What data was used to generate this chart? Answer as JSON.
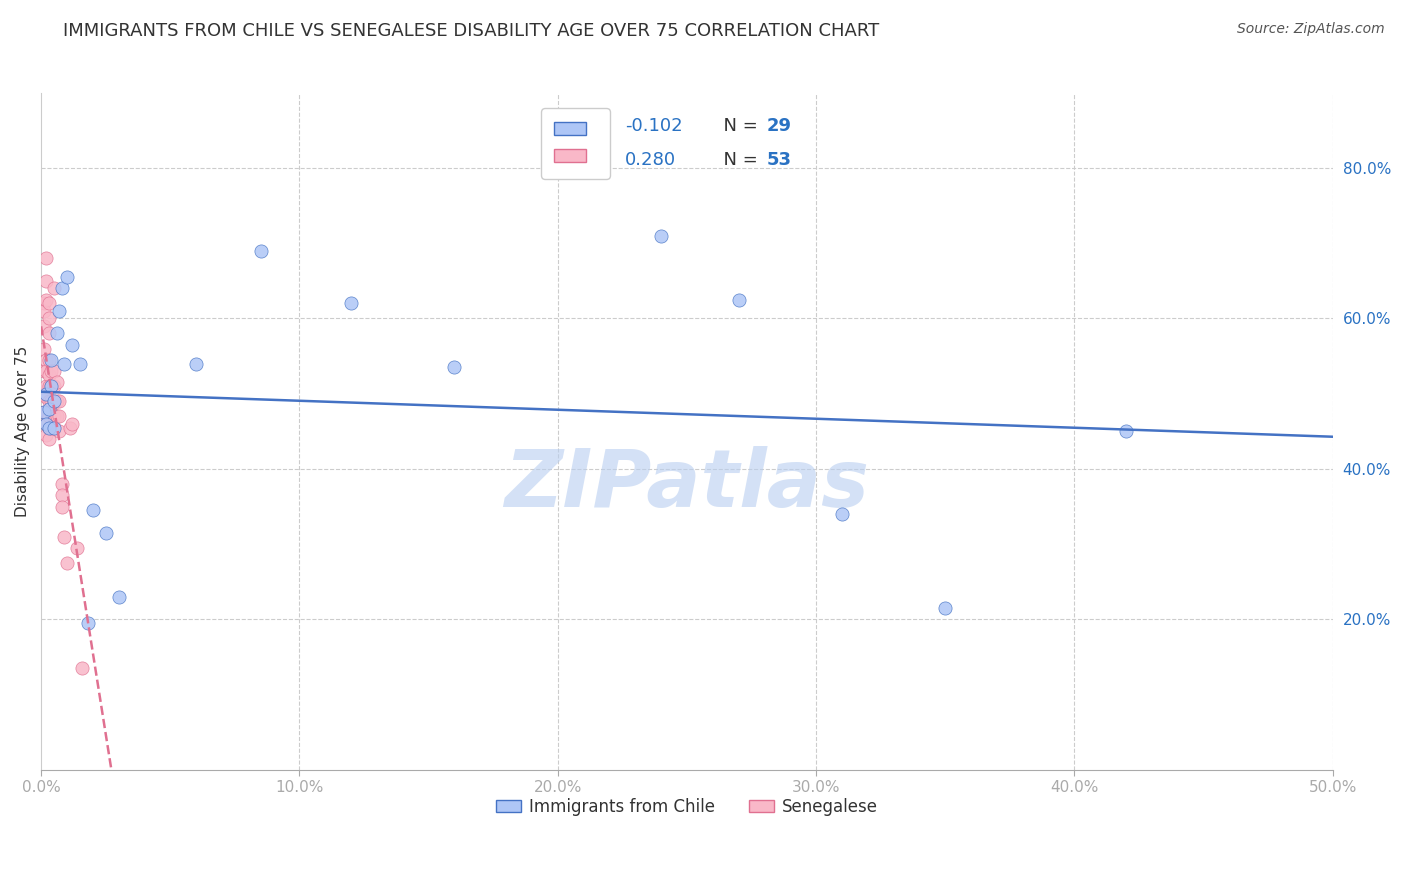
{
  "title": "IMMIGRANTS FROM CHILE VS SENEGALESE DISABILITY AGE OVER 75 CORRELATION CHART",
  "source": "Source: ZipAtlas.com",
  "ylabel": "Disability Age Over 75",
  "xlim": [
    0.0,
    0.5
  ],
  "ylim": [
    0.0,
    0.9
  ],
  "xticklabels": [
    "0.0%",
    "10.0%",
    "20.0%",
    "30.0%",
    "40.0%",
    "50.0%"
  ],
  "xticks": [
    0.0,
    0.1,
    0.2,
    0.3,
    0.4,
    0.5
  ],
  "right_yticks": [
    0.2,
    0.4,
    0.6,
    0.8
  ],
  "right_yticklabels": [
    "20.0%",
    "40.0%",
    "60.0%",
    "80.0%"
  ],
  "grid_color": "#cccccc",
  "background_color": "#ffffff",
  "chile_color": "#aec6f6",
  "chile_color_dark": "#4472c4",
  "senegal_color": "#f9b8c8",
  "senegal_color_dark": "#e07090",
  "chile_R": -0.102,
  "chile_N": 29,
  "senegal_R": 0.28,
  "senegal_N": 53,
  "watermark": "ZIPatlas",
  "watermark_color": "#b8cef0",
  "title_color": "#333333",
  "axis_color": "#2a72c3",
  "legend_label_chile": "Immigrants from Chile",
  "legend_label_senegal": "Senegalese",
  "chile_x": [
    0.001,
    0.002,
    0.002,
    0.003,
    0.003,
    0.004,
    0.004,
    0.005,
    0.005,
    0.006,
    0.007,
    0.008,
    0.009,
    0.01,
    0.012,
    0.015,
    0.018,
    0.02,
    0.025,
    0.03,
    0.06,
    0.085,
    0.12,
    0.16,
    0.24,
    0.27,
    0.31,
    0.35,
    0.42
  ],
  "chile_y": [
    0.475,
    0.46,
    0.5,
    0.48,
    0.455,
    0.51,
    0.545,
    0.49,
    0.455,
    0.58,
    0.61,
    0.64,
    0.54,
    0.655,
    0.565,
    0.54,
    0.195,
    0.345,
    0.315,
    0.23,
    0.54,
    0.69,
    0.62,
    0.535,
    0.71,
    0.625,
    0.34,
    0.215,
    0.45
  ],
  "senegal_x": [
    0.001,
    0.001,
    0.001,
    0.001,
    0.001,
    0.001,
    0.001,
    0.002,
    0.002,
    0.002,
    0.002,
    0.002,
    0.002,
    0.002,
    0.002,
    0.002,
    0.002,
    0.003,
    0.003,
    0.003,
    0.003,
    0.003,
    0.003,
    0.003,
    0.003,
    0.003,
    0.003,
    0.004,
    0.004,
    0.004,
    0.004,
    0.004,
    0.005,
    0.005,
    0.005,
    0.005,
    0.005,
    0.005,
    0.006,
    0.006,
    0.006,
    0.007,
    0.007,
    0.007,
    0.008,
    0.008,
    0.008,
    0.009,
    0.01,
    0.011,
    0.012,
    0.014,
    0.016
  ],
  "senegal_y": [
    0.62,
    0.61,
    0.59,
    0.56,
    0.53,
    0.5,
    0.475,
    0.68,
    0.65,
    0.625,
    0.545,
    0.53,
    0.51,
    0.495,
    0.475,
    0.46,
    0.445,
    0.62,
    0.6,
    0.58,
    0.545,
    0.525,
    0.51,
    0.49,
    0.47,
    0.455,
    0.44,
    0.53,
    0.51,
    0.49,
    0.475,
    0.455,
    0.64,
    0.53,
    0.51,
    0.49,
    0.47,
    0.455,
    0.515,
    0.49,
    0.47,
    0.49,
    0.47,
    0.45,
    0.38,
    0.365,
    0.35,
    0.31,
    0.275,
    0.455,
    0.46,
    0.295,
    0.135
  ],
  "senegal_trend_xlim": [
    0.0,
    0.032
  ],
  "chile_trend_xlim": [
    0.0,
    0.5
  ]
}
